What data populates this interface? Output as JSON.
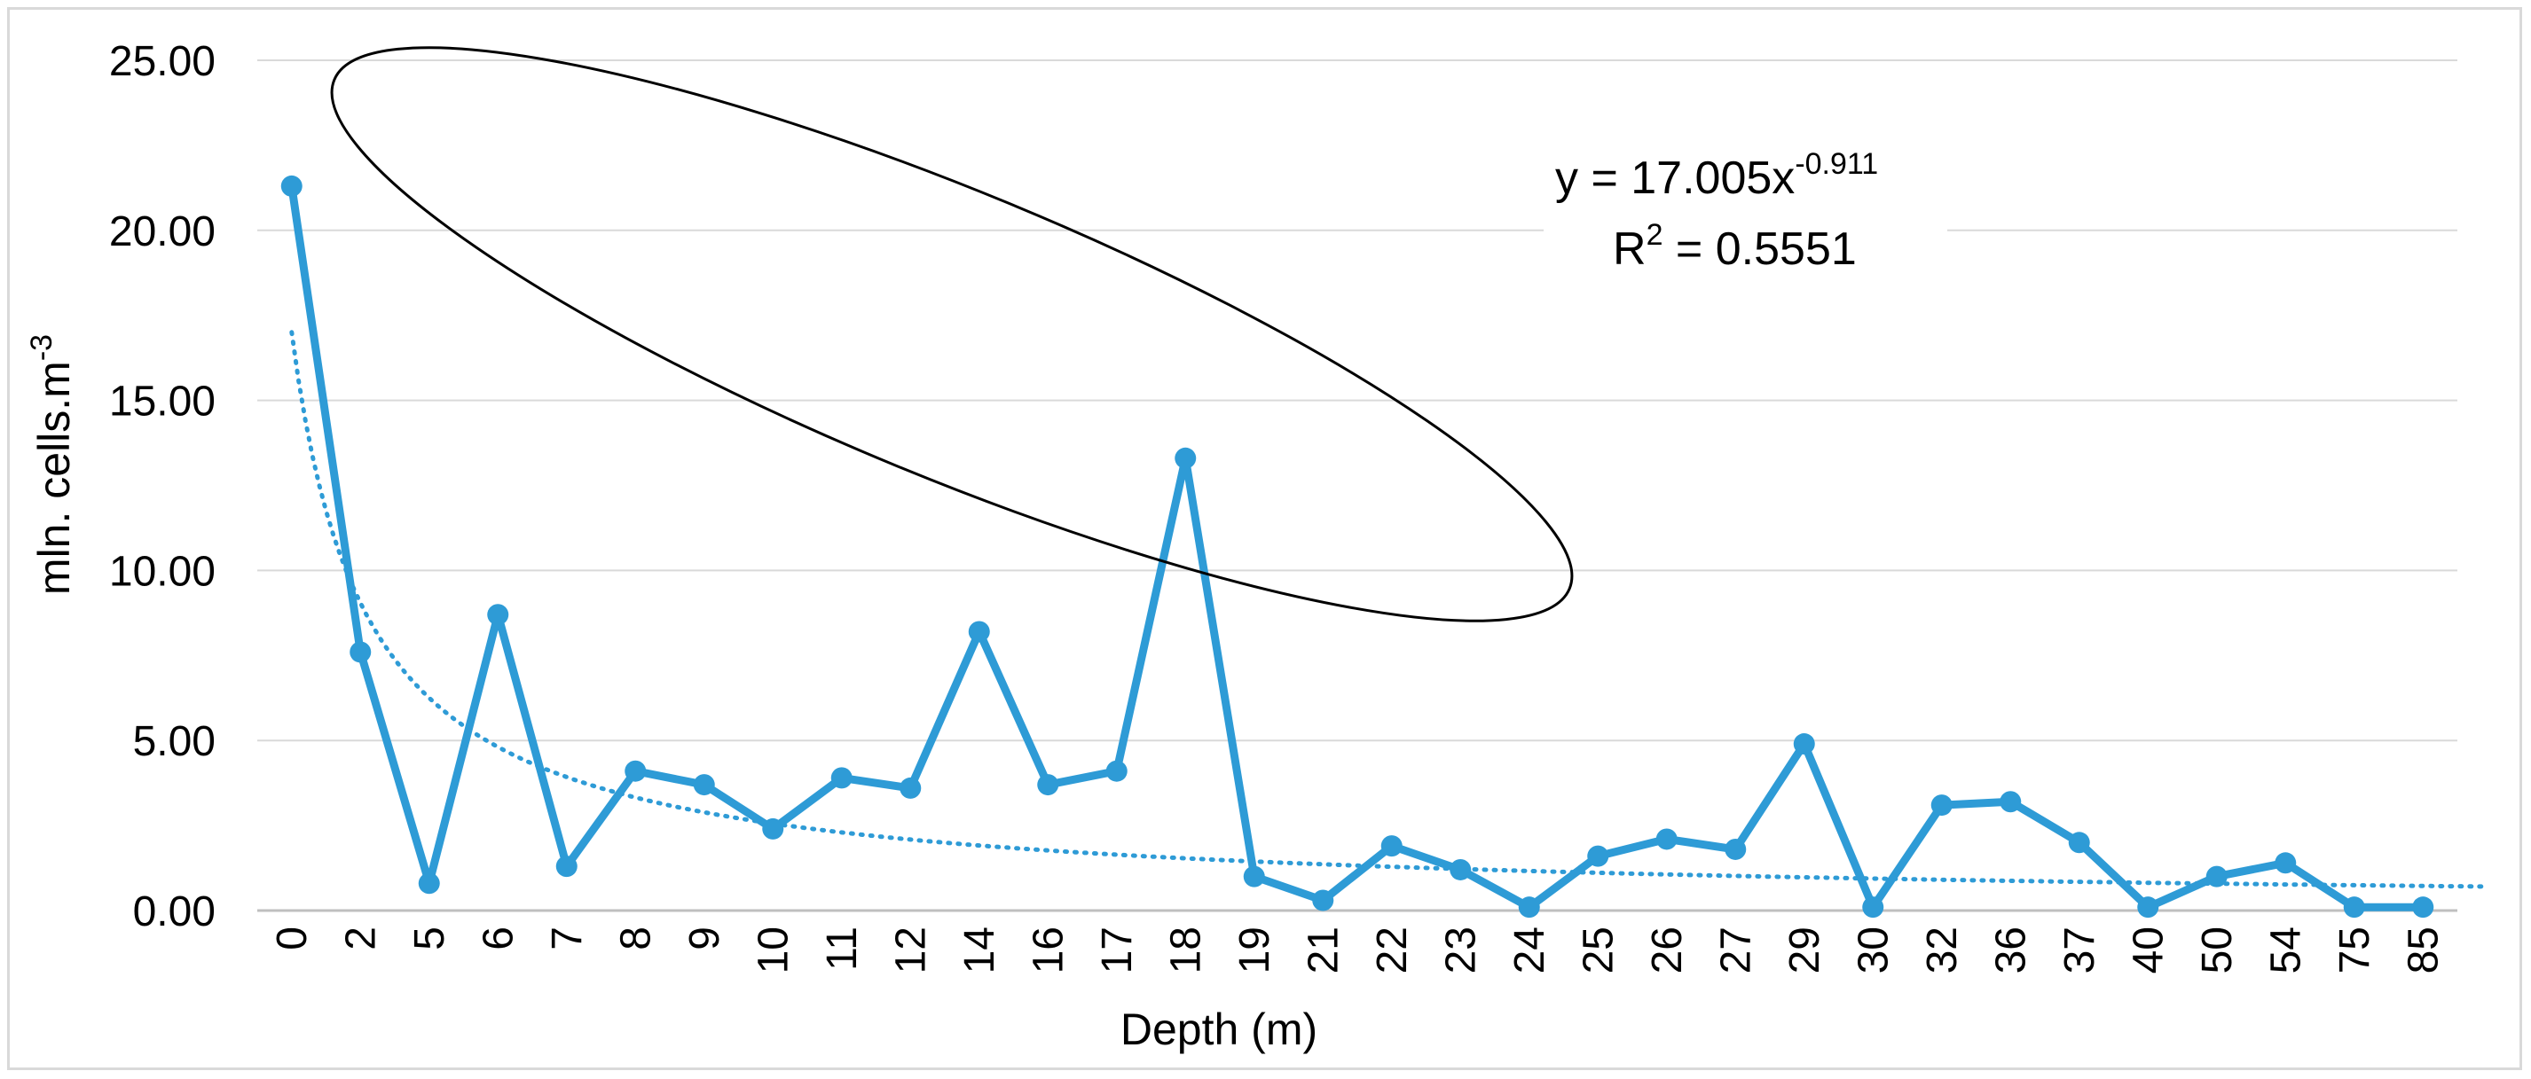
{
  "chart_data": {
    "type": "line",
    "xlabel": "Depth (m)",
    "ylabel": "mln. cells.m",
    "ylabel_sup": "-3",
    "ylim": [
      0,
      25
    ],
    "yticks": [
      "0.00",
      "5.00",
      "10.00",
      "15.00",
      "20.00",
      "25.00"
    ],
    "ytick_values": [
      0,
      5,
      10,
      15,
      20,
      25
    ],
    "categories": [
      "0",
      "2",
      "5",
      "6",
      "7",
      "8",
      "9",
      "10",
      "11",
      "12",
      "14",
      "16",
      "17",
      "18",
      "19",
      "21",
      "22",
      "23",
      "24",
      "25",
      "26",
      "27",
      "29",
      "30",
      "32",
      "36",
      "37",
      "40",
      "50",
      "54",
      "75",
      "85"
    ],
    "series": [
      {
        "color": "#2e9bd6",
        "values": [
          21.3,
          7.6,
          0.8,
          8.7,
          1.3,
          4.1,
          3.7,
          2.4,
          3.9,
          3.6,
          8.2,
          3.7,
          4.1,
          13.3,
          1.0,
          0.3,
          1.9,
          1.2,
          0.1,
          1.6,
          2.1,
          1.8,
          4.9,
          0.1,
          3.1,
          3.2,
          2.0,
          0.1,
          1.0,
          1.4,
          0.1,
          0.1
        ]
      }
    ],
    "trendline": {
      "type": "power",
      "a": 17.005,
      "b": -0.911,
      "style": "dotted",
      "color": "#2e9bd6",
      "equation_prefix": "y = 17.005x",
      "equation_exponent": "-0.911",
      "r2_prefix": "R",
      "r2_sup": "2",
      "r2_value": " = 0.5551"
    },
    "annotation": {
      "shape": "ellipse",
      "color": "#000000",
      "encloses": [
        "0",
        "18"
      ]
    },
    "grid": true,
    "legend": "none"
  }
}
